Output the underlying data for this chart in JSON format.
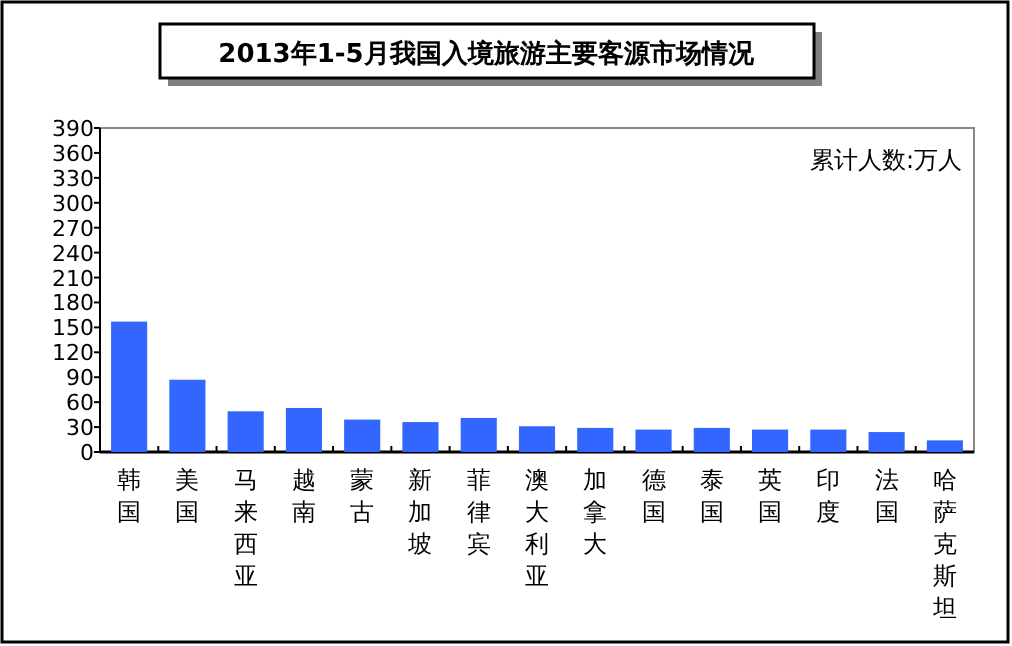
{
  "chart_data": {
    "type": "bar",
    "title": "2013年1-5月我国入境旅游主要客源市场情况",
    "categories": [
      "韩国",
      "美国",
      "马来西亚",
      "越南",
      "蒙古",
      "新加坡",
      "菲律宾",
      "澳大利亚",
      "加拿大",
      "德国",
      "泰国",
      "英国",
      "印度",
      "法国",
      "哈萨克斯坦"
    ],
    "values": [
      157,
      87,
      49,
      53,
      39,
      36,
      41,
      31,
      29,
      27,
      29,
      27,
      27,
      24,
      14
    ],
    "color": "#3366ff",
    "ylim": [
      0,
      390
    ],
    "yticks": [
      0,
      30,
      60,
      90,
      120,
      150,
      180,
      210,
      240,
      270,
      300,
      330,
      360,
      390
    ],
    "annotations": [
      "累计人数:万人"
    ],
    "grid": false
  }
}
